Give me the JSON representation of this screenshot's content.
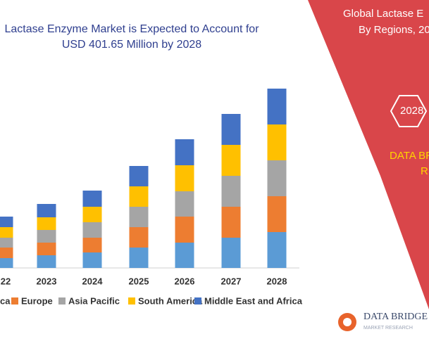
{
  "chart_data": {
    "type": "bar",
    "stacked": true,
    "title": [
      "Lactase Enzyme Market is Expected to Account for",
      "USD 401.65 Million by 2028"
    ],
    "categories": [
      "22",
      "2023",
      "2024",
      "2025",
      "2026",
      "2027",
      "2028"
    ],
    "series": [
      {
        "name": "ca",
        "color": "#5b9bd5",
        "values": [
          14,
          18,
          22,
          29,
          36,
          43,
          51
        ]
      },
      {
        "name": "Europe",
        "color": "#ed7d31",
        "values": [
          15,
          18,
          21,
          29,
          37,
          44,
          51
        ]
      },
      {
        "name": "Asia Pacific",
        "color": "#a5a5a5",
        "values": [
          14,
          18,
          22,
          29,
          36,
          44,
          51
        ]
      },
      {
        "name": "South America",
        "color": "#ffc000",
        "values": [
          15,
          18,
          22,
          29,
          37,
          44,
          51
        ]
      },
      {
        "name": "Middle East and Africa",
        "color": "#4472c4",
        "values": [
          15,
          19,
          23,
          29,
          37,
          44,
          51
        ]
      }
    ]
  },
  "side_panel": {
    "title": [
      "Global Lactase E",
      "By Regions, 20"
    ],
    "year": "2028",
    "brand": [
      "DATA BR",
      "R"
    ]
  },
  "logo": {
    "name": "DATA BRIDGE",
    "tagline": "MARKET RESEARCH"
  }
}
